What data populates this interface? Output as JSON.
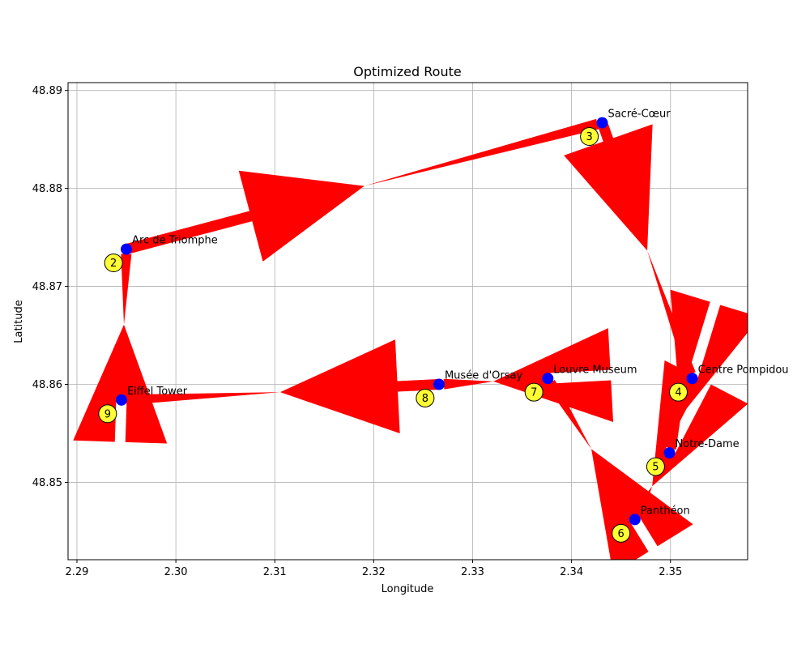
{
  "chart_data": {
    "type": "scatter",
    "title": "Optimized Route",
    "xlabel": "Longitude",
    "ylabel": "Latitude",
    "xlim": [
      2.2891,
      2.3578
    ],
    "ylim": [
      48.8421,
      48.8908
    ],
    "xticks": [
      "2.29",
      "2.30",
      "2.31",
      "2.32",
      "2.33",
      "2.34",
      "2.35"
    ],
    "yticks": [
      "48.85",
      "48.86",
      "48.87",
      "48.88",
      "48.89"
    ],
    "grid": true,
    "points": [
      {
        "name": "Arc de Triomphe",
        "x": 2.295,
        "y": 48.8738
      },
      {
        "name": "Sacré-Cœur",
        "x": 2.3431,
        "y": 48.8867
      },
      {
        "name": "Centre Pompidou",
        "x": 2.3522,
        "y": 48.8606
      },
      {
        "name": "Notre-Dame",
        "x": 2.3499,
        "y": 48.853
      },
      {
        "name": "Panthéon",
        "x": 2.3464,
        "y": 48.8462
      },
      {
        "name": "Louvre Museum",
        "x": 2.3376,
        "y": 48.8606
      },
      {
        "name": "Musée d'Orsay",
        "x": 2.3266,
        "y": 48.86
      },
      {
        "name": "Eiffel Tower",
        "x": 2.2945,
        "y": 48.8584
      }
    ],
    "route_order": [
      "Arc de Triomphe",
      "Sacré-Cœur",
      "Centre Pompidou",
      "Notre-Dame",
      "Panthéon",
      "Louvre Museum",
      "Musée d'Orsay",
      "Eiffel Tower",
      "Arc de Triomphe"
    ],
    "step_badges": [
      {
        "label": "2",
        "x": 2.2937,
        "y": 48.8724
      },
      {
        "label": "3",
        "x": 2.3418,
        "y": 48.8853
      },
      {
        "label": "4",
        "x": 2.3508,
        "y": 48.8592
      },
      {
        "label": "5",
        "x": 2.3485,
        "y": 48.8516
      },
      {
        "label": "6",
        "x": 2.345,
        "y": 48.8448
      },
      {
        "label": "7",
        "x": 2.3362,
        "y": 48.8592
      },
      {
        "label": "8",
        "x": 2.3252,
        "y": 48.8586
      },
      {
        "label": "9",
        "x": 2.2931,
        "y": 48.857
      }
    ],
    "colors": {
      "route": "#ff0000",
      "points": "#0000ff",
      "badge": "#ffff33",
      "grid": "#b0b0b0"
    }
  }
}
